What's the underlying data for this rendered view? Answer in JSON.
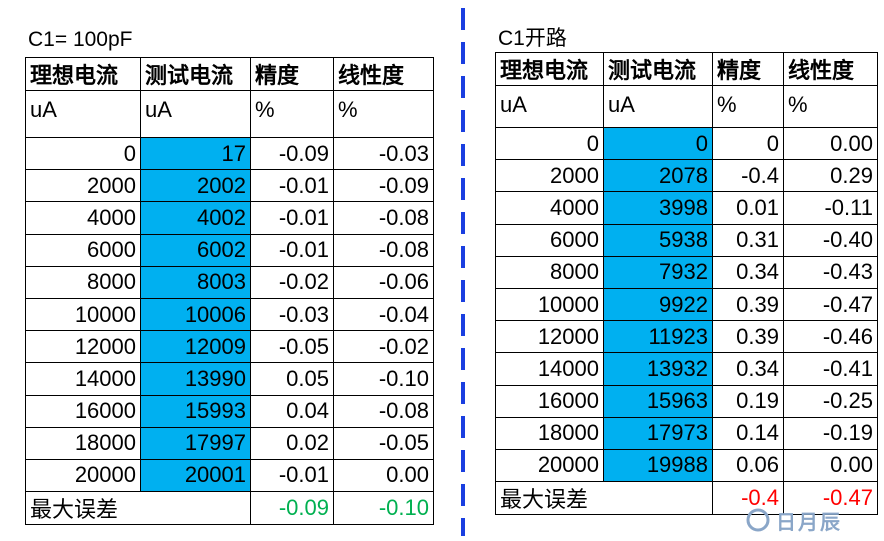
{
  "left": {
    "caption": "C1= 100pF",
    "headers": [
      "理想电流",
      "测试电流",
      "精度",
      "线性度"
    ],
    "units": [
      "uA",
      "uA",
      "%",
      "%"
    ],
    "rows": [
      [
        "0",
        "17",
        "-0.09",
        "-0.03"
      ],
      [
        "2000",
        "2002",
        "-0.01",
        "-0.09"
      ],
      [
        "4000",
        "4002",
        "-0.01",
        "-0.08"
      ],
      [
        "6000",
        "6002",
        "-0.01",
        "-0.08"
      ],
      [
        "8000",
        "8003",
        "-0.02",
        "-0.06"
      ],
      [
        "10000",
        "10006",
        "-0.03",
        "-0.04"
      ],
      [
        "12000",
        "12009",
        "-0.05",
        "-0.02"
      ],
      [
        "14000",
        "13990",
        "0.05",
        "-0.10"
      ],
      [
        "16000",
        "15993",
        "0.04",
        "-0.08"
      ],
      [
        "18000",
        "17997",
        "0.02",
        "-0.05"
      ],
      [
        "20000",
        "20001",
        "-0.01",
        "0.00"
      ]
    ],
    "footer": {
      "label": "最大误差",
      "values": [
        "-0.09",
        "-0.10"
      ]
    }
  },
  "right": {
    "caption": "C1开路",
    "headers": [
      "理想电流",
      "测试电流",
      "精度",
      "线性度"
    ],
    "units": [
      "uA",
      "uA",
      "%",
      "%"
    ],
    "rows": [
      [
        "0",
        "0",
        "0",
        "0.00"
      ],
      [
        "2000",
        "2078",
        "-0.4",
        "0.29"
      ],
      [
        "4000",
        "3998",
        "0.01",
        "-0.11"
      ],
      [
        "6000",
        "5938",
        "0.31",
        "-0.40"
      ],
      [
        "8000",
        "7932",
        "0.34",
        "-0.43"
      ],
      [
        "10000",
        "9922",
        "0.39",
        "-0.47"
      ],
      [
        "12000",
        "11923",
        "0.39",
        "-0.46"
      ],
      [
        "14000",
        "13932",
        "0.34",
        "-0.41"
      ],
      [
        "16000",
        "15963",
        "0.19",
        "-0.25"
      ],
      [
        "18000",
        "17973",
        "0.14",
        "-0.19"
      ],
      [
        "20000",
        "19988",
        "0.06",
        "0.00"
      ]
    ],
    "footer": {
      "label": "最大误差",
      "values": [
        "-0.4",
        "-0.47"
      ]
    }
  },
  "watermark": "日月辰"
}
